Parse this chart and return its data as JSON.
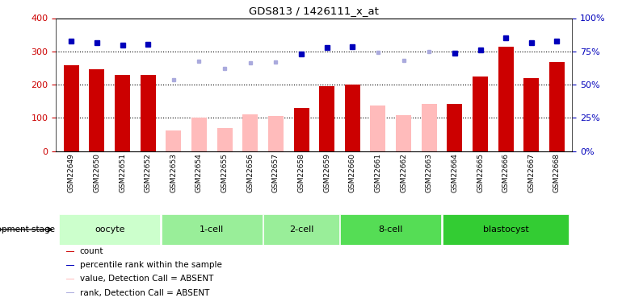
{
  "title": "GDS813 / 1426111_x_at",
  "samples": [
    "GSM22649",
    "GSM22650",
    "GSM22651",
    "GSM22652",
    "GSM22653",
    "GSM22654",
    "GSM22655",
    "GSM22656",
    "GSM22657",
    "GSM22658",
    "GSM22659",
    "GSM22660",
    "GSM22661",
    "GSM22662",
    "GSM22663",
    "GSM22664",
    "GSM22665",
    "GSM22666",
    "GSM22667",
    "GSM22668"
  ],
  "count_values": [
    258,
    246,
    228,
    230,
    null,
    null,
    null,
    null,
    null,
    130,
    195,
    200,
    null,
    null,
    null,
    143,
    225,
    315,
    220,
    268
  ],
  "count_absent": [
    null,
    null,
    null,
    null,
    62,
    100,
    70,
    110,
    105,
    null,
    null,
    null,
    137,
    108,
    143,
    null,
    null,
    null,
    null,
    null
  ],
  "percentile_present": [
    330,
    325,
    318,
    322,
    null,
    null,
    null,
    null,
    null,
    292,
    312,
    315,
    null,
    null,
    null,
    295,
    305,
    340,
    325,
    330
  ],
  "percentile_absent": [
    null,
    null,
    null,
    null,
    215,
    270,
    248,
    265,
    268,
    null,
    null,
    null,
    298,
    272,
    299,
    null,
    null,
    null,
    null,
    null
  ],
  "groups": [
    {
      "name": "oocyte",
      "start": 0,
      "end": 3,
      "color": "#ccffcc"
    },
    {
      "name": "1-cell",
      "start": 4,
      "end": 7,
      "color": "#99ee99"
    },
    {
      "name": "2-cell",
      "start": 8,
      "end": 10,
      "color": "#99ee99"
    },
    {
      "name": "8-cell",
      "start": 11,
      "end": 14,
      "color": "#55dd55"
    },
    {
      "name": "blastocyst",
      "start": 15,
      "end": 19,
      "color": "#33cc33"
    }
  ],
  "ylim_left": [
    0,
    400
  ],
  "ylim_right": [
    0,
    100
  ],
  "yticks_left": [
    0,
    100,
    200,
    300,
    400
  ],
  "yticks_right": [
    0,
    25,
    50,
    75,
    100
  ],
  "bar_color_present": "#cc0000",
  "bar_color_absent": "#ffbbbb",
  "dot_color_present": "#0000bb",
  "dot_color_absent": "#aaaadd",
  "plot_bg": "#ffffff",
  "legend_items": [
    {
      "color": "#cc0000",
      "label": "count"
    },
    {
      "color": "#0000bb",
      "label": "percentile rank within the sample"
    },
    {
      "color": "#ffbbbb",
      "label": "value, Detection Call = ABSENT"
    },
    {
      "color": "#aaaadd",
      "label": "rank, Detection Call = ABSENT"
    }
  ]
}
